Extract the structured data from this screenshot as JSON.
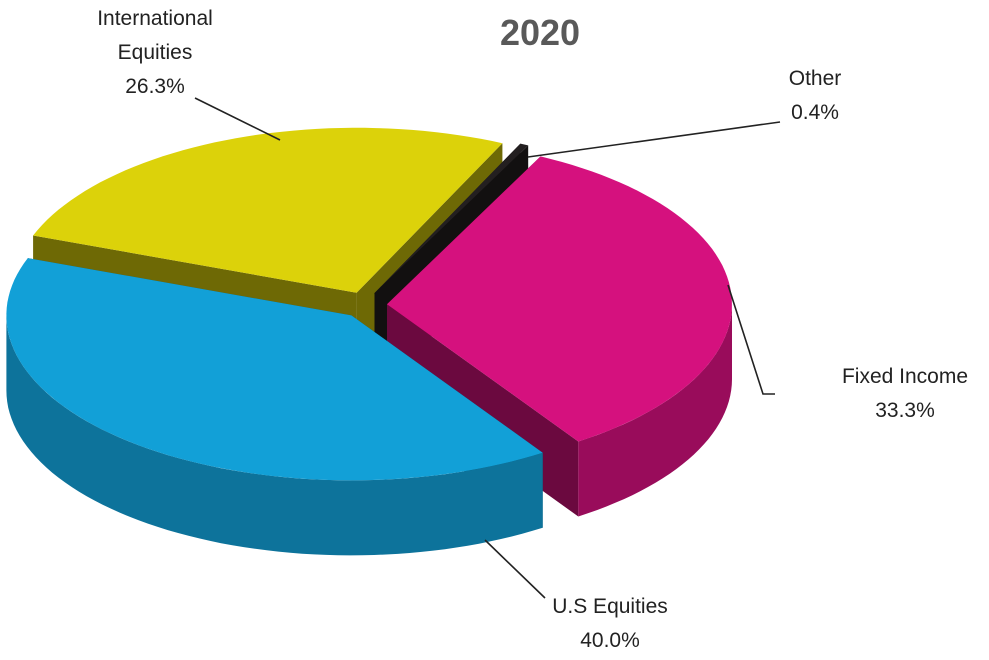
{
  "chart_data": {
    "type": "pie",
    "title": "2020",
    "categories": [
      "Other",
      "Fixed Income",
      "U.S Equities",
      "International Equities"
    ],
    "values": [
      0.4,
      33.3,
      40.0,
      26.3
    ],
    "value_labels": [
      "0.4%",
      "33.3%",
      "40.0%",
      "26.3%"
    ],
    "colors": [
      "#231f20",
      "#d5117e",
      "#12a0d7",
      "#dcd20a"
    ]
  }
}
